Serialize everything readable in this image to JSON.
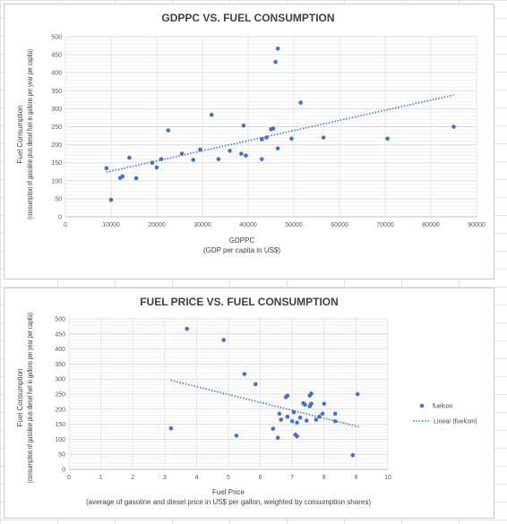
{
  "chart_data": [
    {
      "type": "scatter",
      "title": "GDPPC VS. FUEL CONSUMPTION",
      "xlabel": "GDPPC",
      "xlabel_sub": "(GDP per capita in US$)",
      "ylabel": "Fuel Consumption",
      "ylabel_sub": "(consumption of gasoline plus diesel fuel in gallons per year per capita)",
      "xlim": [
        0,
        90000
      ],
      "ylim": [
        0,
        500
      ],
      "xticks": [
        0,
        10000,
        20000,
        30000,
        40000,
        50000,
        60000,
        70000,
        80000,
        90000
      ],
      "yticks": [
        0,
        50,
        100,
        150,
        200,
        250,
        300,
        350,
        400,
        450,
        500
      ],
      "grid": true,
      "color": "#4472c4",
      "trendline": {
        "type": "linear",
        "x": [
          9000,
          85000
        ],
        "y": [
          124,
          338
        ]
      },
      "points": [
        {
          "x": 9000,
          "y": 135
        },
        {
          "x": 10000,
          "y": 47
        },
        {
          "x": 12000,
          "y": 108
        },
        {
          "x": 12500,
          "y": 112
        },
        {
          "x": 14000,
          "y": 164
        },
        {
          "x": 15500,
          "y": 107
        },
        {
          "x": 19000,
          "y": 150
        },
        {
          "x": 20000,
          "y": 137
        },
        {
          "x": 21000,
          "y": 160
        },
        {
          "x": 22500,
          "y": 240
        },
        {
          "x": 25500,
          "y": 175
        },
        {
          "x": 28000,
          "y": 158
        },
        {
          "x": 29500,
          "y": 187
        },
        {
          "x": 32000,
          "y": 283
        },
        {
          "x": 33500,
          "y": 160
        },
        {
          "x": 36000,
          "y": 183
        },
        {
          "x": 38500,
          "y": 175
        },
        {
          "x": 39000,
          "y": 253
        },
        {
          "x": 39500,
          "y": 170
        },
        {
          "x": 43000,
          "y": 160
        },
        {
          "x": 43000,
          "y": 215
        },
        {
          "x": 44000,
          "y": 220
        },
        {
          "x": 45000,
          "y": 243
        },
        {
          "x": 45500,
          "y": 245
        },
        {
          "x": 46000,
          "y": 430
        },
        {
          "x": 46500,
          "y": 467
        },
        {
          "x": 46500,
          "y": 190
        },
        {
          "x": 49500,
          "y": 217
        },
        {
          "x": 51500,
          "y": 317
        },
        {
          "x": 56500,
          "y": 220
        },
        {
          "x": 70500,
          "y": 217
        },
        {
          "x": 85000,
          "y": 250
        }
      ]
    },
    {
      "type": "scatter",
      "title": "FUEL PRICE VS. FUEL CONSUMPTION",
      "xlabel": "Fuel Price",
      "xlabel_sub": "(average of gasoline and diesel price in US$ per gallon, weighted by consumption shares)",
      "ylabel": "Fuel Consumption",
      "ylabel_sub": "(consumption of gasoline plus diesel fuel in gallons per year per capita)",
      "xlim": [
        0,
        10
      ],
      "ylim": [
        0,
        500
      ],
      "xticks": [
        0,
        1,
        2,
        3,
        4,
        5,
        6,
        7,
        8,
        9,
        10
      ],
      "yticks": [
        0,
        50,
        100,
        150,
        200,
        250,
        300,
        350,
        400,
        450,
        500
      ],
      "grid": true,
      "color": "#4472c4",
      "legend": {
        "position": "right",
        "entries": [
          "fuelcon",
          "Linear (fuelcon)"
        ]
      },
      "trendline": {
        "type": "linear",
        "x": [
          3.2,
          9.1
        ],
        "y": [
          296,
          141
        ]
      },
      "points": [
        {
          "x": 3.2,
          "y": 136
        },
        {
          "x": 3.7,
          "y": 467
        },
        {
          "x": 4.85,
          "y": 430
        },
        {
          "x": 5.25,
          "y": 112
        },
        {
          "x": 5.5,
          "y": 317
        },
        {
          "x": 5.85,
          "y": 283
        },
        {
          "x": 6.4,
          "y": 135
        },
        {
          "x": 6.55,
          "y": 105
        },
        {
          "x": 6.6,
          "y": 185
        },
        {
          "x": 6.65,
          "y": 165
        },
        {
          "x": 6.8,
          "y": 240
        },
        {
          "x": 6.85,
          "y": 245
        },
        {
          "x": 6.85,
          "y": 175
        },
        {
          "x": 7.0,
          "y": 160
        },
        {
          "x": 7.05,
          "y": 190
        },
        {
          "x": 7.1,
          "y": 115
        },
        {
          "x": 7.15,
          "y": 110
        },
        {
          "x": 7.15,
          "y": 155
        },
        {
          "x": 7.25,
          "y": 172
        },
        {
          "x": 7.35,
          "y": 220
        },
        {
          "x": 7.4,
          "y": 215
        },
        {
          "x": 7.45,
          "y": 162
        },
        {
          "x": 7.55,
          "y": 245
        },
        {
          "x": 7.55,
          "y": 210
        },
        {
          "x": 7.6,
          "y": 252
        },
        {
          "x": 7.6,
          "y": 218
        },
        {
          "x": 7.75,
          "y": 165
        },
        {
          "x": 7.85,
          "y": 175
        },
        {
          "x": 7.95,
          "y": 185
        },
        {
          "x": 8.0,
          "y": 218
        },
        {
          "x": 8.35,
          "y": 185
        },
        {
          "x": 8.35,
          "y": 160
        },
        {
          "x": 8.9,
          "y": 47
        },
        {
          "x": 9.05,
          "y": 250
        }
      ]
    }
  ]
}
